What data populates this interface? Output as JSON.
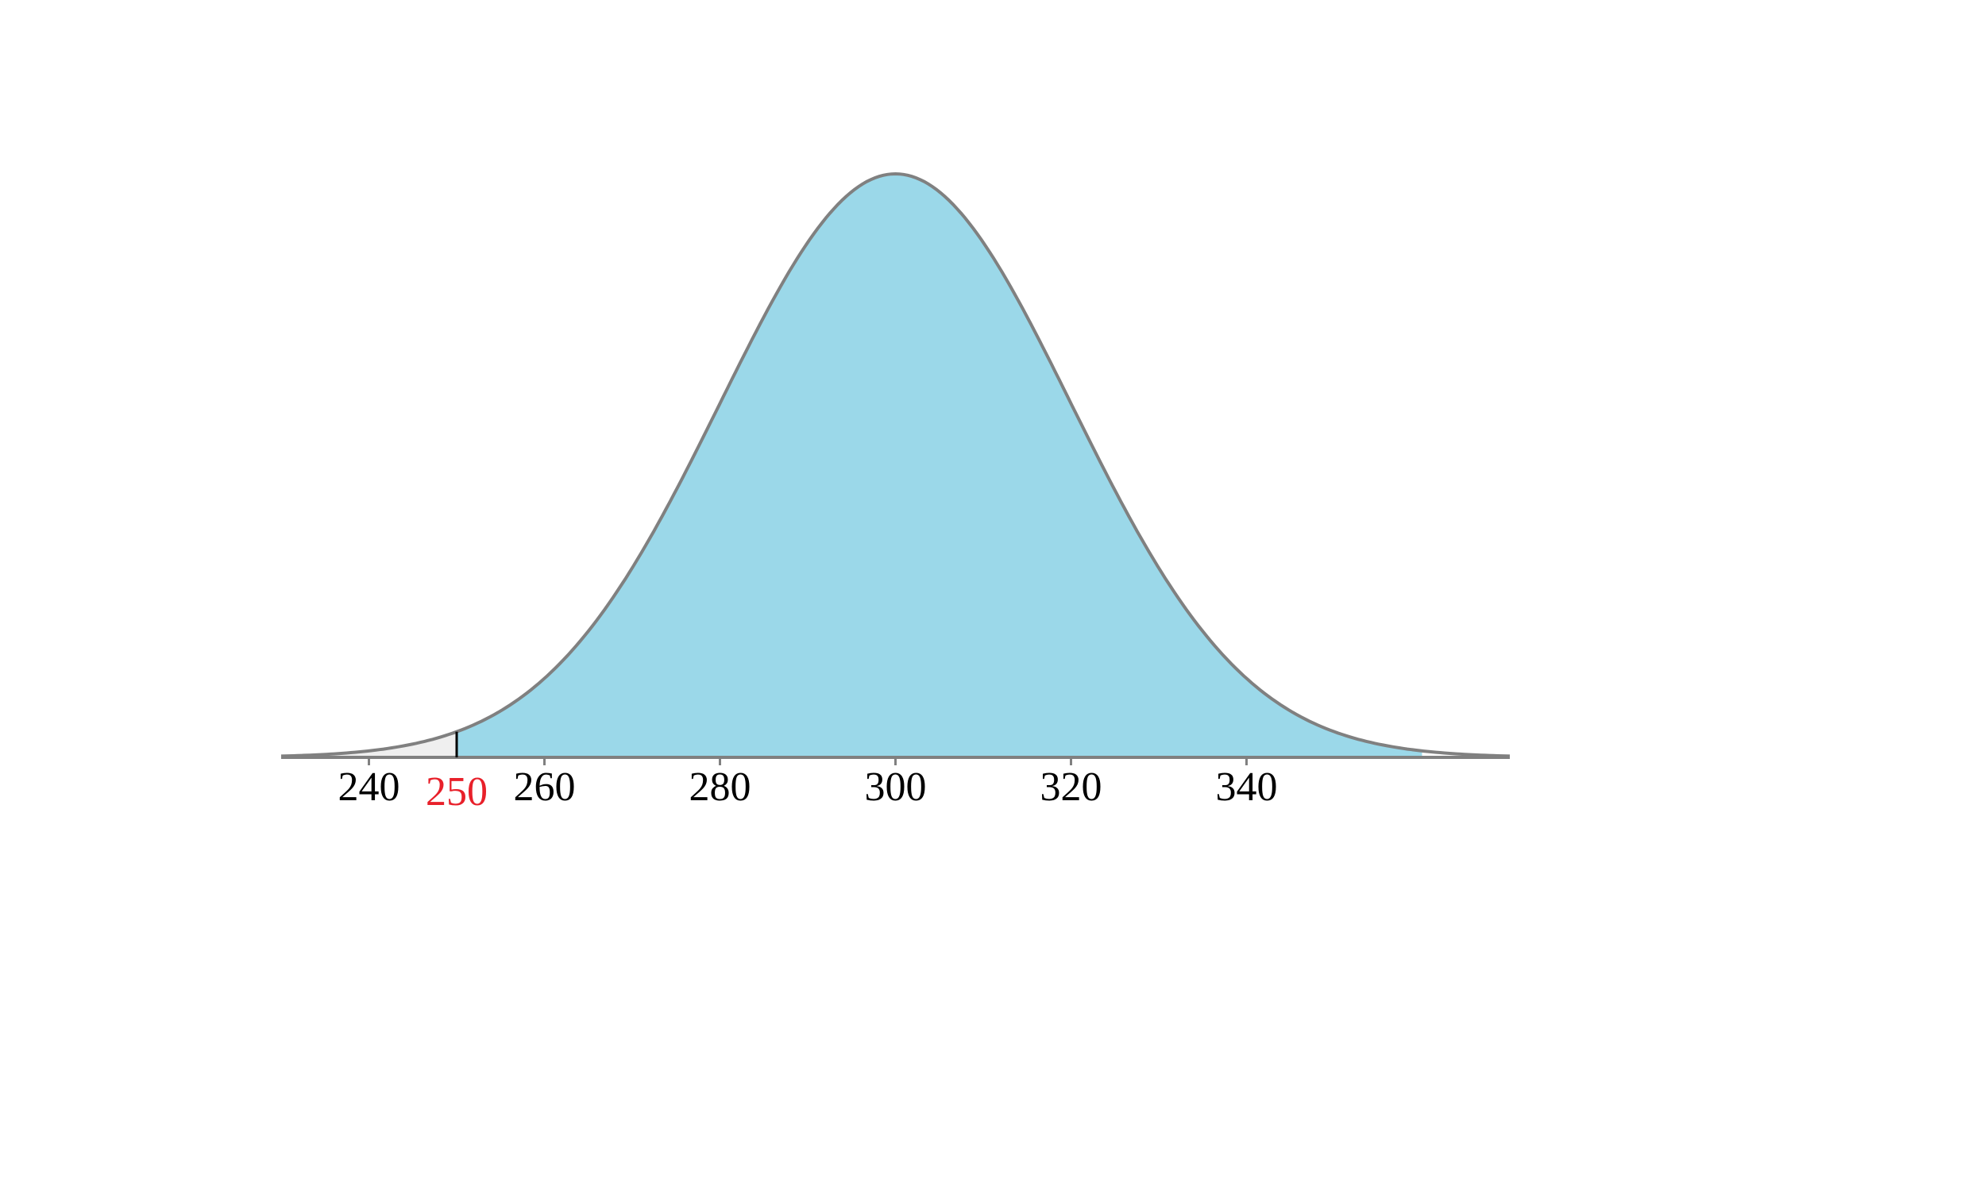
{
  "chart_data": {
    "type": "normal",
    "mean": 300,
    "sd": 20,
    "xlim": [
      230,
      370
    ],
    "xticks": [
      240,
      260,
      280,
      300,
      320,
      340
    ],
    "shade": [
      250,
      360
    ],
    "shade_color": "#9bd8e9",
    "tail_color": "#efefef",
    "line_color": "#808080",
    "marker": {
      "value": 250,
      "color": "#e8202a"
    }
  }
}
